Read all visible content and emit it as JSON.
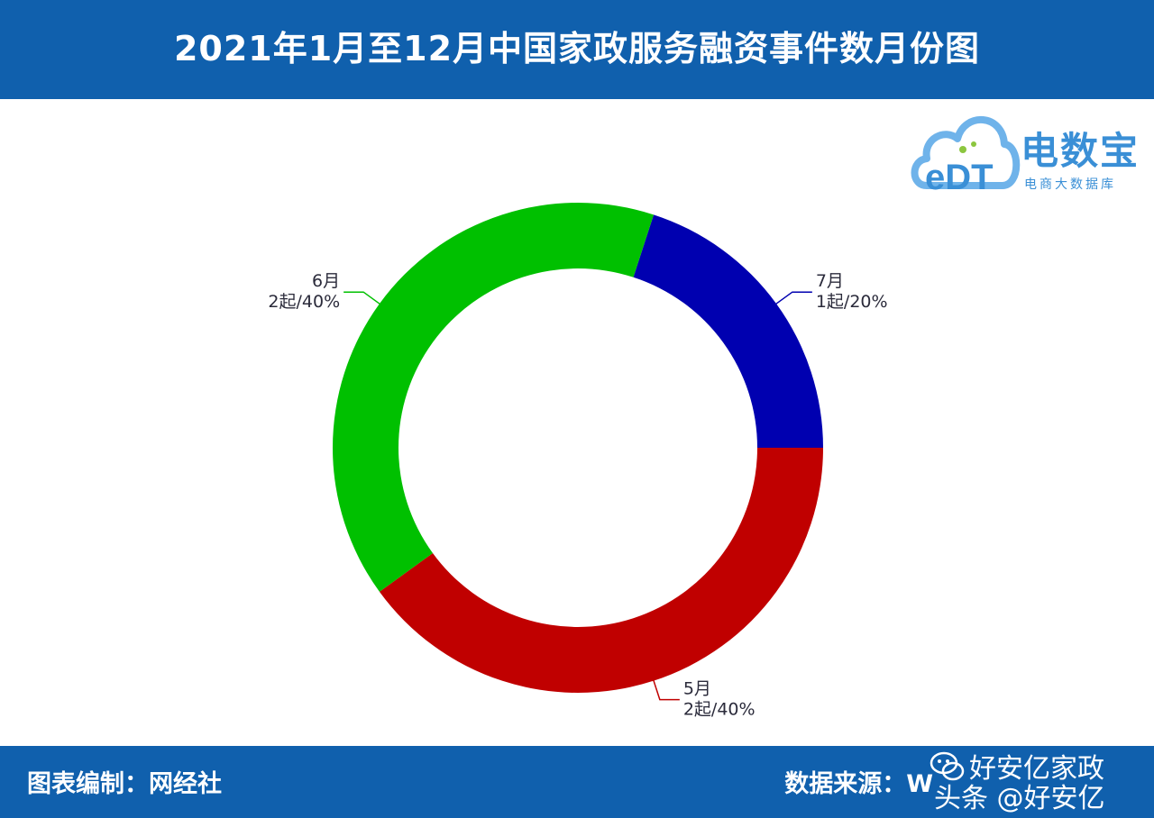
{
  "header": {
    "title": "2021年1月至12月中国家政服务融资事件数月份图"
  },
  "footer": {
    "credit": "图表编制：网经社",
    "source_label": "数据来源：",
    "source_visible": "W"
  },
  "logo": {
    "name": "电数宝",
    "subtitle": "电商大数据库",
    "mark": "eDT",
    "icon": "cloud-icon"
  },
  "watermark": {
    "name": "好安亿家政",
    "handle": "头条 @好安亿",
    "icon": "wechat-icon"
  },
  "colors": {
    "header_bg": "#1060ad",
    "may": "#c00000",
    "june": "#00c000",
    "july": "#0000b0"
  },
  "chart_data": {
    "type": "pie",
    "variant": "donut",
    "unit": "起",
    "slices": [
      {
        "month": "7月",
        "count": 1,
        "percent": 20,
        "count_label": "1起/20%",
        "color": "#0000b0"
      },
      {
        "month": "5月",
        "count": 2,
        "percent": 40,
        "count_label": "2起/40%",
        "color": "#c00000"
      },
      {
        "month": "6月",
        "count": 2,
        "percent": 40,
        "count_label": "2起/40%",
        "color": "#00c000"
      }
    ]
  }
}
